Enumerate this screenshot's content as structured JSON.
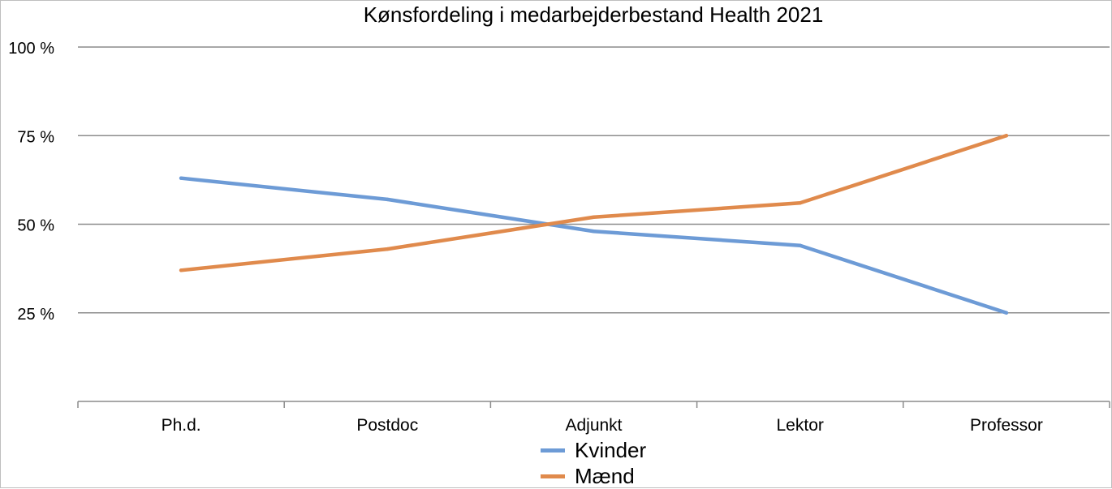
{
  "chart_data": {
    "type": "line",
    "title": "Kønsfordeling i medarbejderbestand Health 2021",
    "categories": [
      "Ph.d.",
      "Postdoc",
      "Adjunkt",
      "Lektor",
      "Professor"
    ],
    "series": [
      {
        "name": "Kvinder",
        "color": "#6d9bd6",
        "values": [
          63,
          57,
          48,
          44,
          25
        ]
      },
      {
        "name": "Mænd",
        "color": "#e08a4c",
        "values": [
          37,
          43,
          52,
          56,
          75
        ]
      }
    ],
    "yticks": [
      {
        "value": 100,
        "label": "100 %"
      },
      {
        "value": 75,
        "label": "75 %"
      },
      {
        "value": 50,
        "label": "50 %"
      },
      {
        "value": 25,
        "label": "25 %"
      }
    ],
    "ylim": [
      0,
      100
    ],
    "xlabel": "",
    "ylabel": "",
    "grid": true,
    "legend_position": "bottom"
  }
}
